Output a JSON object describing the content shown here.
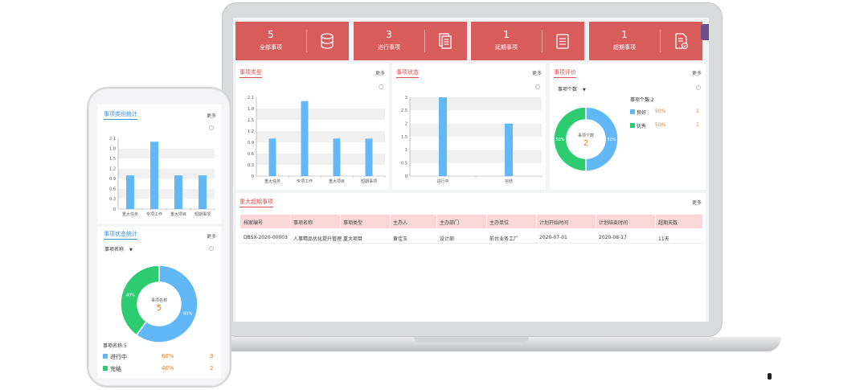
{
  "laptop": {
    "stats": [
      {
        "value": "5",
        "label": "全部事项",
        "icon": "database-icon"
      },
      {
        "value": "3",
        "label": "进行事项",
        "icon": "documents-icon"
      },
      {
        "value": "1",
        "label": "延期事项",
        "icon": "list-document-icon"
      },
      {
        "value": "1",
        "label": "超期事项",
        "icon": "document-check-icon"
      }
    ],
    "more": "更多",
    "type_panel": {
      "title": "事项类型"
    },
    "status_panel": {
      "title": "事项状态"
    },
    "eval_panel": {
      "title": "事项评价",
      "select": "事项个数",
      "summary": "事项个数:2",
      "center_label": "事项个数",
      "center_value": "2",
      "legend": [
        {
          "name": "良好",
          "pct": "50%",
          "count": "1",
          "color": "#62b8f7"
        },
        {
          "name": "优秀",
          "pct": "50%",
          "count": "1",
          "color": "#2ecc71"
        }
      ]
    },
    "table_panel": {
      "title": "重大超期事项",
      "headers": [
        "档案编号",
        "事项名称",
        "事项类型",
        "主办人",
        "主办部门",
        "主办单位",
        "计划开始时间",
        "计划结束时间",
        "超期天数"
      ],
      "rows": [
        [
          "DBSX-2020-00003",
          "人事精品优化提升管理...",
          "重大项目",
          "黄佳玉",
          "设计部",
          "前台业务工厂",
          "2020-07-01",
          "2020-08-17",
          "11天"
        ]
      ]
    }
  },
  "phone": {
    "type_panel": {
      "title": "事项类别统计",
      "more": "更多"
    },
    "status_panel": {
      "title": "事项状态统计",
      "more": "更多",
      "select": "事项名称",
      "center_label": "事项名称",
      "center_value": "5",
      "summary": "事项名称:5",
      "legend": [
        {
          "name": "进行中",
          "pct": "60%",
          "count": "3",
          "color": "#62b8f7"
        },
        {
          "name": "完结",
          "pct": "40%",
          "count": "2",
          "color": "#2ecc71"
        }
      ]
    }
  },
  "chart_data": [
    {
      "type": "bar",
      "categories": [
        "重大任务",
        "专项工作",
        "重大项目",
        "短期事项"
      ],
      "values": [
        1,
        2,
        1,
        1
      ],
      "ylim": [
        0,
        2.1
      ],
      "yticks": [
        "0",
        "0.3",
        "0.6",
        "0.9",
        "1.2",
        "1.5",
        "1.8",
        "2.1"
      ],
      "color": "#62b8f7"
    },
    {
      "type": "bar",
      "categories": [
        "进行中",
        "完结"
      ],
      "values": [
        3,
        2
      ],
      "ylim": [
        0,
        3
      ],
      "yticks": [
        "0",
        "0.5",
        "1",
        "1.5",
        "2",
        "2.5",
        "3"
      ],
      "color": "#62b8f7"
    },
    {
      "type": "pie",
      "categories": [
        "良好",
        "优秀"
      ],
      "values": [
        50,
        50
      ],
      "labels": [
        "50%",
        "50%"
      ],
      "colors": [
        "#62b8f7",
        "#2ecc71"
      ]
    },
    {
      "type": "bar",
      "categories": [
        "重大任务",
        "专项工作",
        "重大项目",
        "短期事项"
      ],
      "values": [
        1,
        2,
        1,
        1
      ],
      "ylim": [
        0,
        2.1
      ],
      "yticks": [
        "0",
        "0.3",
        "0.6",
        "0.9",
        "1.2",
        "1.5",
        "1.8",
        "2.1"
      ],
      "color": "#62b8f7"
    },
    {
      "type": "pie",
      "categories": [
        "进行中",
        "完结"
      ],
      "values": [
        60,
        40
      ],
      "labels": [
        "60%",
        "40%"
      ],
      "colors": [
        "#62b8f7",
        "#2ecc71"
      ]
    }
  ]
}
